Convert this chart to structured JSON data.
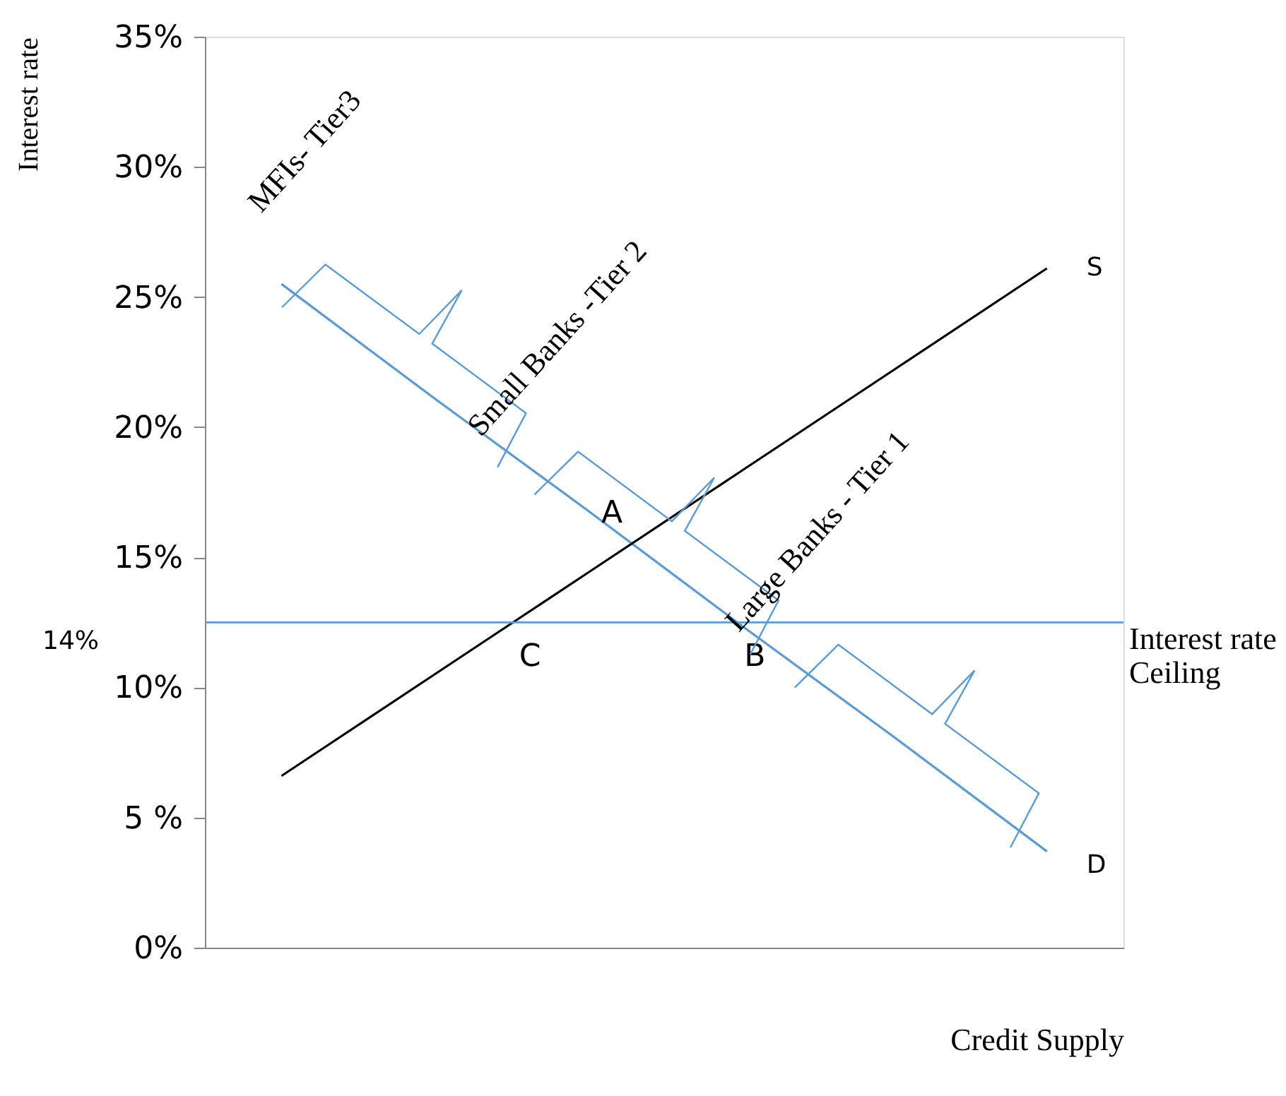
{
  "chart_data": {
    "type": "line",
    "xlabel": "Credit Supply",
    "ylabel": "Interest rate",
    "categories": [
      null,
      null,
      null,
      null,
      null,
      null
    ],
    "series": [
      {
        "name": "D",
        "color": "#5b9bd5",
        "values": [
          25.5,
          21.1,
          16.8,
          12.4,
          8.1,
          3.7
        ]
      },
      {
        "name": "S",
        "color": "#000000",
        "values": [
          6.6,
          10.5,
          14.4,
          18.3,
          22.2,
          26.1
        ]
      }
    ],
    "ylim": [
      0,
      35
    ],
    "yticks": [
      {
        "value": 0,
        "label": "0%"
      },
      {
        "value": 5,
        "label": "5 %"
      },
      {
        "value": 10,
        "label": "10%"
      },
      {
        "value": 15,
        "label": "15%"
      },
      {
        "value": 20,
        "label": "20%"
      },
      {
        "value": 25,
        "label": "25%"
      },
      {
        "value": 30,
        "label": "30%"
      },
      {
        "value": 35,
        "label": "35%"
      }
    ],
    "tick_labels": "y",
    "marker": "none",
    "line_style": "solid",
    "ref_lines": [
      {
        "axis": "y",
        "value": 12.5,
        "label": "Interest rate\nCeiling",
        "color": "#5b9bd5"
      }
    ],
    "annotations": [
      "14%",
      "A",
      "B",
      "C",
      "MFIs- Tier3",
      "Small Banks -Tier 2",
      "Large Banks - Tier 1"
    ]
  }
}
